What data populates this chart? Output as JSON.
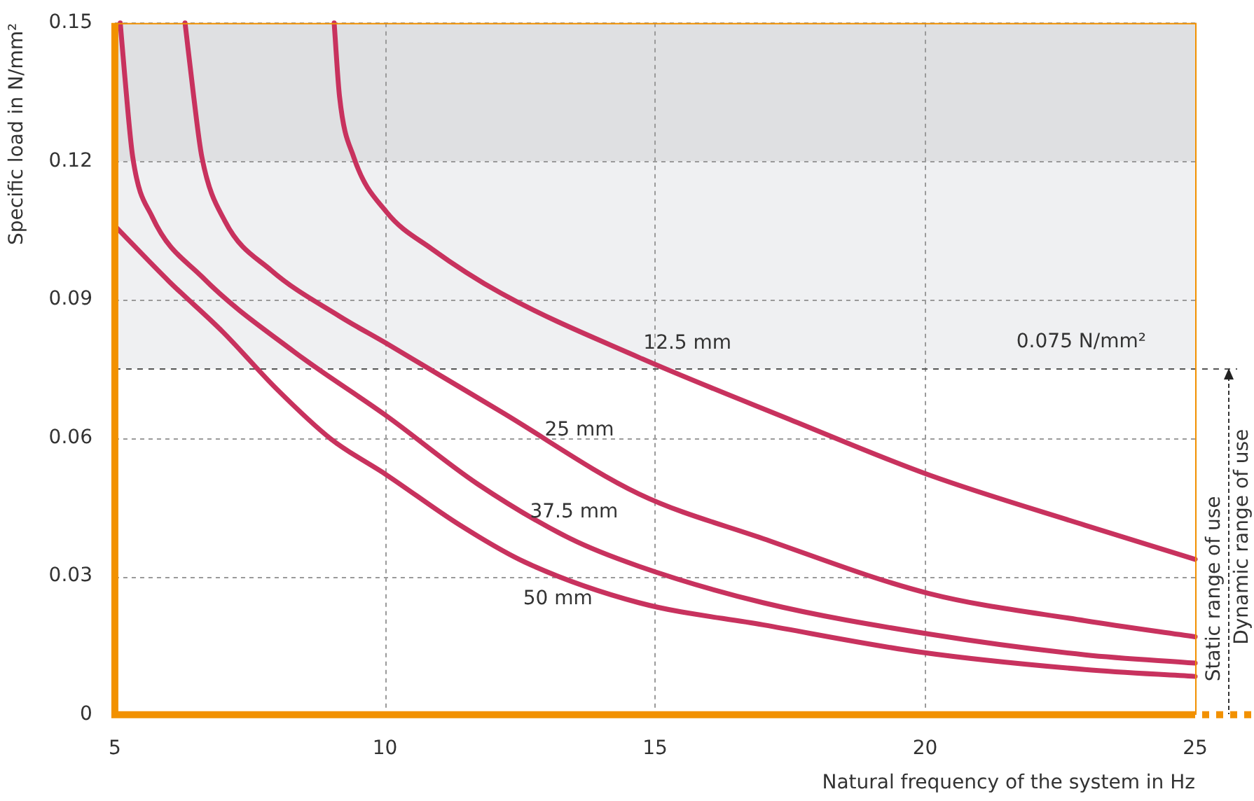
{
  "chart_data": {
    "type": "line",
    "xlabel": "Natural frequency of the system in Hz",
    "ylabel": "Specific load in N/mm²",
    "xlim": [
      5,
      25
    ],
    "xticks": [
      5,
      10,
      15,
      20,
      25
    ],
    "ylim": [
      0,
      0.15
    ],
    "yticks": [
      0,
      0.03,
      0.06,
      0.09,
      0.12,
      0.15
    ],
    "grid": true,
    "legend": false,
    "marker": "none",
    "line_style": "solid",
    "series": [
      {
        "name": "12.5 mm",
        "color": "#c8325e",
        "x": [
          9.06,
          9.16,
          9.42,
          10.03,
          10.87,
          12.15,
          14.7,
          17.5,
          20.07,
          22.96,
          25
        ],
        "values": [
          0.15,
          0.134,
          0.121,
          0.109,
          0.101,
          0.0914,
          0.0775,
          0.064,
          0.052,
          0.0411,
          0.0337
        ]
      },
      {
        "name": "25 mm",
        "color": "#c8325e",
        "x": [
          6.3,
          6.46,
          6.61,
          7.04,
          7.89,
          9.16,
          10.03,
          12.15,
          14.7,
          17.0,
          20.07,
          22.96,
          25
        ],
        "values": [
          0.15,
          0.134,
          0.121,
          0.107,
          0.0964,
          0.0864,
          0.0805,
          0.0657,
          0.0479,
          0.0382,
          0.0263,
          0.0204,
          0.0169
        ]
      },
      {
        "name": "37.5 mm",
        "color": "#c8325e",
        "x": [
          5.1,
          5.18,
          5.33,
          5.69,
          6.61,
          8.32,
          10.03,
          11.72,
          13.43,
          14.7,
          17.0,
          20.07,
          22.96,
          25
        ],
        "values": [
          0.15,
          0.139,
          0.121,
          0.108,
          0.095,
          0.0787,
          0.0648,
          0.05,
          0.0382,
          0.0322,
          0.0243,
          0.0175,
          0.013,
          0.0112
        ]
      },
      {
        "name": "50 mm",
        "color": "#c8325e",
        "x": [
          5,
          6,
          7,
          7.99,
          9.0,
          10.03,
          11.39,
          12.59,
          14.7,
          17.0,
          19.9,
          22.96,
          25
        ],
        "values": [
          0.106,
          0.094,
          0.083,
          0.0707,
          0.0598,
          0.052,
          0.0411,
          0.0331,
          0.0243,
          0.0195,
          0.0136,
          0.0098,
          0.0083
        ]
      }
    ],
    "bands": [
      {
        "axis": "y",
        "from": 0.075,
        "to": 0.12,
        "color": "#eff0f2"
      },
      {
        "axis": "y",
        "from": 0.12,
        "to": 0.15,
        "color": "#dfe0e2"
      }
    ],
    "ref_lines": [
      {
        "axis": "y",
        "value": 0.075,
        "label": "0.075 N/mm²",
        "color": "#555555",
        "line_style": "dashed"
      }
    ],
    "annotations": [
      "Static range of use",
      "Dynamic range of use"
    ]
  }
}
